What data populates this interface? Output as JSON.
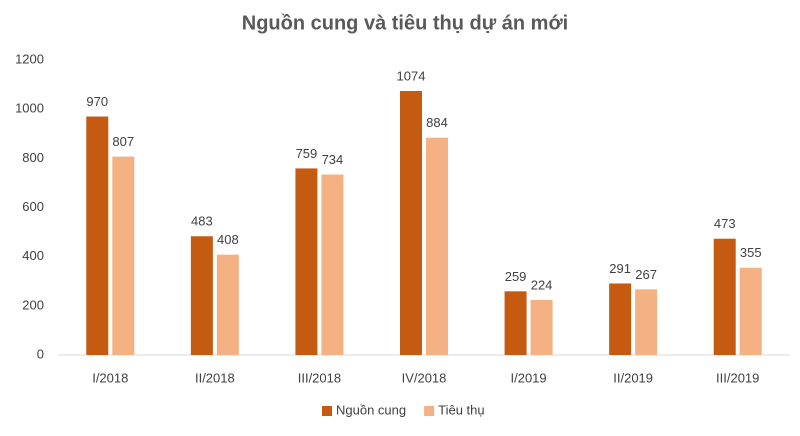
{
  "chart_data": {
    "type": "bar",
    "title": "Nguồn cung và tiêu thụ dự án mới",
    "categories": [
      "I/2018",
      "II/2018",
      "III/2018",
      "IV/2018",
      "I/2019",
      "II/2019",
      "III/2019"
    ],
    "series": [
      {
        "name": "Nguồn cung",
        "color": "#c55a11",
        "values": [
          970,
          483,
          759,
          1074,
          259,
          291,
          473
        ]
      },
      {
        "name": "Tiêu thụ",
        "color": "#f4b183",
        "values": [
          807,
          408,
          734,
          884,
          224,
          267,
          355
        ]
      }
    ],
    "ylim": [
      0,
      1200
    ],
    "yticks": [
      0,
      200,
      400,
      600,
      800,
      1000,
      1200
    ],
    "grid": false,
    "legend": "bottom"
  }
}
